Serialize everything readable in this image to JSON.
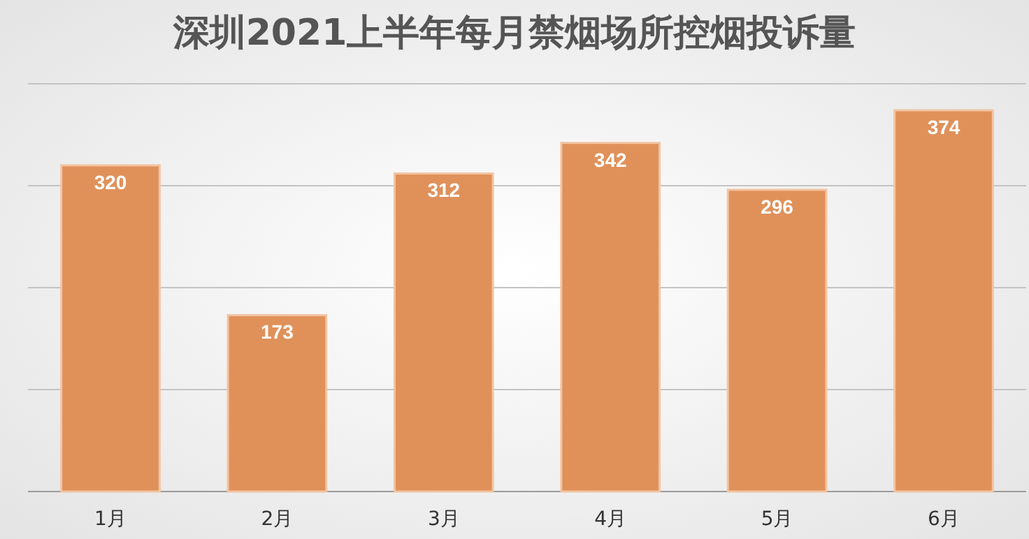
{
  "chart_data": {
    "type": "bar",
    "title": "深圳2021上半年每月禁烟场所控烟投诉量",
    "categories": [
      "1月",
      "2月",
      "3月",
      "4月",
      "5月",
      "6月"
    ],
    "values": [
      320,
      173,
      312,
      342,
      296,
      374
    ],
    "color": "#e0915a",
    "ylim": [
      0,
      400
    ],
    "yticks": [
      {
        "value": 0,
        "label": null
      },
      {
        "value": 100,
        "label": null
      },
      {
        "value": 200,
        "label": null
      },
      {
        "value": 300,
        "label": null
      },
      {
        "value": 400,
        "label": null
      }
    ],
    "grid": true,
    "tick_labels": "x",
    "data_labels": true
  }
}
